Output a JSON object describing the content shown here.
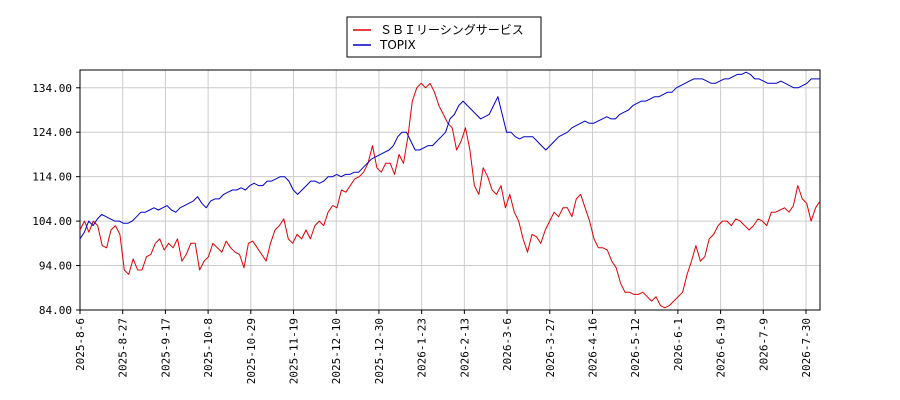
{
  "chart_data": {
    "type": "line",
    "ylim": [
      84,
      138
    ],
    "yticks": [
      "84.00",
      "94.00",
      "104.00",
      "114.00",
      "124.00",
      "134.00"
    ],
    "xticks": [
      "2025-8-6",
      "2025-8-27",
      "2025-9-17",
      "2025-10-8",
      "2025-10-29",
      "2025-11-19",
      "2025-12-10",
      "2025-12-30",
      "2026-1-23",
      "2026-2-13",
      "2026-3-6",
      "2026-3-27",
      "2026-4-16",
      "2026-5-12",
      "2026-6-1",
      "2026-6-19",
      "2026-7-9",
      "2026-7-30"
    ],
    "grid": true,
    "legend_position": "top-center",
    "series": [
      {
        "name": "ＳＢＩリーシングサービス",
        "color": "#dd0000",
        "values": [
          102,
          104,
          101.5,
          104,
          103,
          98.5,
          98,
          102,
          103,
          101,
          93,
          92,
          95.5,
          93,
          93,
          96,
          96.5,
          99,
          100,
          97.5,
          99,
          98,
          100,
          95,
          96.5,
          99,
          99,
          93,
          95,
          96,
          99,
          98,
          97,
          99.5,
          98,
          97,
          96.5,
          93.5,
          99,
          99.5,
          98,
          96.5,
          95,
          99,
          102,
          103,
          104.5,
          100,
          99,
          101,
          100,
          102,
          100,
          103,
          104,
          103,
          106,
          107.5,
          107,
          111,
          110.5,
          112,
          113.5,
          114,
          115,
          117,
          121,
          116,
          115,
          117,
          117,
          114.5,
          119,
          117,
          123,
          131,
          134,
          135,
          134,
          135,
          133,
          130,
          128,
          126,
          125,
          120,
          122,
          125,
          120,
          112,
          110,
          116,
          114,
          111,
          110,
          112,
          107,
          110,
          106,
          104,
          100,
          97,
          101,
          100.5,
          99,
          102,
          104,
          106,
          105,
          107,
          107,
          105,
          109,
          110,
          107,
          104,
          100,
          98,
          98,
          97.5,
          95,
          93.5,
          90,
          88,
          88,
          87.5,
          87.5,
          88,
          87,
          86,
          87,
          85,
          84.5,
          85,
          86,
          87,
          88,
          92,
          95,
          98.5,
          95,
          96,
          100,
          101,
          103,
          104,
          104,
          103,
          104.5,
          104,
          103,
          102,
          103,
          104.5,
          104,
          103,
          106,
          106,
          106.5,
          107,
          106,
          107.5,
          112,
          109,
          108,
          104,
          107,
          108.5
        ]
      },
      {
        "name": "TOPIX",
        "color": "#0000cc",
        "values": [
          100,
          101.5,
          104,
          103,
          104.5,
          105.5,
          105,
          104.5,
          104,
          104,
          103.5,
          103.5,
          104,
          105,
          106,
          106,
          106.5,
          107,
          106.5,
          107,
          107.5,
          106.5,
          106,
          107,
          107.5,
          108,
          108.5,
          109.5,
          108,
          107,
          108.5,
          109,
          109,
          110,
          110.5,
          111,
          111,
          111.5,
          111,
          112,
          112.5,
          112,
          112,
          113,
          113,
          113.5,
          114,
          114,
          113,
          111,
          110,
          111,
          112,
          113,
          113,
          112.5,
          113,
          114,
          114,
          114.5,
          114,
          114.5,
          114.5,
          115,
          115,
          116,
          117,
          118,
          118.5,
          119,
          119.5,
          120,
          121,
          123,
          124,
          124,
          122,
          120,
          120,
          120.5,
          121,
          121,
          122,
          123,
          124,
          127,
          128,
          130,
          131,
          130,
          129,
          128,
          127,
          127.5,
          128,
          130,
          132,
          128,
          124,
          124,
          123,
          122.5,
          123,
          123,
          123,
          122,
          121,
          120,
          121,
          122,
          123,
          123.5,
          124,
          125,
          125.5,
          126,
          126.5,
          126,
          126,
          126.5,
          127,
          127.5,
          127,
          127,
          128,
          128.5,
          129,
          130,
          130.5,
          131,
          131,
          131.5,
          132,
          132,
          132.5,
          133,
          133,
          134,
          134.5,
          135,
          135.5,
          136,
          136,
          136,
          135.5,
          135,
          135,
          135.5,
          136,
          136,
          136.5,
          137,
          137,
          137.5,
          137,
          136,
          136,
          135.5,
          135,
          135,
          135,
          135.5,
          135,
          134.5,
          134,
          134,
          134.5,
          135,
          136,
          136,
          136
        ]
      }
    ]
  }
}
